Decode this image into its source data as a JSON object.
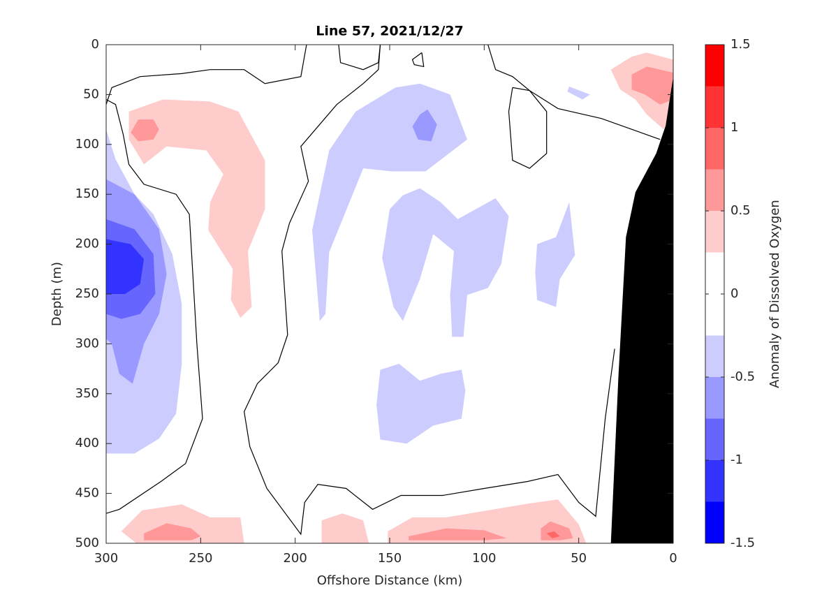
{
  "chart_data": {
    "type": "contour",
    "title": "Line 57, 2021/12/27",
    "xlabel": "Offshore Distance (km)",
    "ylabel": "Depth (m)",
    "xlim": [
      300,
      0
    ],
    "ylim": [
      500,
      0
    ],
    "xticks": [
      300,
      250,
      200,
      150,
      100,
      50,
      0
    ],
    "yticks": [
      0,
      50,
      100,
      150,
      200,
      250,
      300,
      350,
      400,
      450,
      500
    ],
    "colorbar": {
      "label": "Anomaly of Dissolved Oxygen",
      "clim": [
        -1.5,
        1.5
      ],
      "ticks": [
        -1.5,
        -1,
        -0.5,
        0,
        0.5,
        1,
        1.5
      ],
      "levels": [
        -1.5,
        -1.25,
        -1,
        -0.75,
        -0.5,
        -0.25,
        0,
        0.25,
        0.5,
        0.75,
        1,
        1.25,
        1.5
      ],
      "colors": [
        "#0000ff",
        "#3333ff",
        "#6666ff",
        "#9999ff",
        "#ccccff",
        "#ffffff",
        "#ffffff",
        "#ffcccc",
        "#ff9999",
        "#ff6666",
        "#ff3333",
        "#ff0000"
      ]
    },
    "regions": [
      {
        "level": -0.5,
        "x": [
          300,
          295,
          285,
          275,
          265,
          260,
          260,
          263,
          272,
          285,
          300
        ],
        "y": [
          85,
          115,
          150,
          170,
          210,
          260,
          320,
          370,
          395,
          410,
          410
        ]
      },
      {
        "level": -0.75,
        "x": [
          300,
          285,
          272,
          268,
          272,
          280,
          286,
          293,
          297,
          300
        ],
        "y": [
          135,
          150,
          185,
          230,
          270,
          300,
          340,
          330,
          300,
          295
        ]
      },
      {
        "level": -1,
        "x": [
          300,
          285,
          275,
          274,
          282,
          292,
          300
        ],
        "y": [
          175,
          185,
          210,
          250,
          270,
          275,
          270
        ]
      },
      {
        "level": -1.25,
        "x": [
          300,
          287,
          280,
          282,
          290,
          300
        ],
        "y": [
          195,
          200,
          215,
          240,
          250,
          250
        ]
      },
      {
        "level": 0.25,
        "x": [
          288,
          270,
          245,
          230,
          222,
          216,
          216,
          225,
          223,
          229,
          234,
          233,
          240,
          246,
          245,
          238,
          247,
          268,
          280,
          288
        ],
        "y": [
          67,
          55,
          57,
          67,
          95,
          116,
          165,
          207,
          263,
          274,
          256,
          225,
          204,
          186,
          158,
          130,
          106,
          102,
          120,
          95
        ]
      },
      {
        "level": 0.5,
        "x": [
          283,
          275,
          272,
          275,
          283,
          287
        ],
        "y": [
          75,
          75,
          85,
          95,
          97,
          88
        ]
      },
      {
        "level": 0.25,
        "x": [
          33,
          22,
          14,
          0,
          0,
          5,
          14,
          20,
          28
        ],
        "y": [
          25,
          12,
          8,
          15,
          60,
          85,
          70,
          55,
          45
        ]
      },
      {
        "level": 0.5,
        "x": [
          22,
          14,
          0,
          0,
          7,
          15,
          22
        ],
        "y": [
          30,
          22,
          28,
          55,
          60,
          50,
          45
        ]
      },
      {
        "level": -0.5,
        "x": [
          182,
          191,
          187,
          184,
          182,
          164,
          149,
          131,
          109,
          118,
          134,
          147,
          168
        ],
        "y": [
          106,
          186,
          277,
          270,
          208,
          124,
          127,
          127,
          95,
          50,
          39,
          43,
          67
        ]
      },
      {
        "level": -0.75,
        "x": [
          134,
          130,
          125,
          128,
          135,
          138
        ],
        "y": [
          70,
          65,
          80,
          97,
          95,
          82
        ]
      },
      {
        "level": -0.5,
        "x": [
          134,
          123,
          114,
          94,
          87,
          91,
          98,
          109,
          111,
          117,
          118,
          116,
          127,
          134,
          143,
          148,
          154,
          150,
          143
        ],
        "y": [
          144,
          158,
          175,
          154,
          172,
          220,
          244,
          251,
          293,
          293,
          251,
          207,
          190,
          235,
          277,
          263,
          214,
          165,
          151
        ]
      },
      {
        "level": -0.5,
        "x": [
          72,
          62,
          55,
          52,
          60,
          62,
          72,
          73
        ],
        "y": [
          200,
          193,
          158,
          211,
          235,
          263,
          256,
          228
        ]
      },
      {
        "level": -0.5,
        "x": [
          55,
          44,
          48,
          56
        ],
        "y": [
          42,
          50,
          55,
          47
        ]
      },
      {
        "level": -0.5,
        "x": [
          155,
          145,
          134,
          123,
          112,
          110,
          112,
          127,
          141,
          155,
          157
        ],
        "y": [
          326,
          320,
          337,
          330,
          326,
          347,
          375,
          382,
          400,
          396,
          361
        ]
      },
      {
        "level": 0.25,
        "x": [
          292,
          281,
          260,
          245,
          229,
          227,
          284
        ],
        "y": [
          488,
          467,
          461,
          474,
          474,
          500,
          500
        ]
      },
      {
        "level": 0.25,
        "x": [
          186,
          175,
          164,
          161,
          186
        ],
        "y": [
          477,
          470,
          477,
          500,
          500
        ]
      },
      {
        "level": 0.25,
        "x": [
          151,
          138,
          120,
          98,
          76,
          61,
          50,
          46,
          151
        ],
        "y": [
          488,
          474,
          474,
          467,
          460,
          456,
          481,
          500,
          500
        ]
      },
      {
        "level": 0.5,
        "x": [
          280,
          268,
          255,
          250,
          255,
          280
        ],
        "y": [
          490,
          480,
          485,
          493,
          497,
          497
        ]
      },
      {
        "level": 0.5,
        "x": [
          140,
          120,
          100,
          88,
          100,
          140
        ],
        "y": [
          493,
          485,
          487,
          495,
          497,
          497
        ]
      },
      {
        "level": 0.5,
        "x": [
          70,
          65,
          55,
          53,
          60,
          70
        ],
        "y": [
          485,
          478,
          485,
          495,
          497,
          497
        ]
      },
      {
        "level": 0.75,
        "x": [
          67,
          63,
          60,
          64
        ],
        "y": [
          490,
          488,
          493,
          495
        ]
      }
    ],
    "land": {
      "color": "#000000",
      "x": [
        33,
        29,
        25,
        20,
        9,
        4,
        0,
        0
      ],
      "y": [
        500,
        333,
        193,
        148,
        109,
        81,
        32,
        500
      ]
    },
    "contour_color": "#000000",
    "contour_lines": [
      {
        "x": [
          300,
          297,
          282,
          260,
          245,
          227,
          216,
          197,
          194
        ],
        "y": [
          60,
          43,
          32,
          29,
          25,
          25,
          39,
          32,
          0
        ]
      },
      {
        "x": [
          177,
          176,
          164,
          156,
          155
        ],
        "y": [
          0,
          18,
          25,
          18,
          0
        ]
      },
      {
        "x": [
          155,
          156,
          164,
          178,
          197,
          193,
          203,
          207,
          204,
          209,
          220,
          227,
          224,
          215,
          197,
          195,
          188,
          173,
          159,
          144,
          122,
          100,
          77,
          61,
          50,
          41,
          36,
          31
        ],
        "y": [
          0,
          25,
          39,
          60,
          102,
          137,
          179,
          207,
          291,
          319,
          340,
          368,
          403,
          445,
          491,
          459,
          441,
          445,
          466,
          452,
          452,
          445,
          438,
          431,
          459,
          473,
          375,
          305
        ]
      },
      {
        "x": [
          98,
          94,
          85,
          76,
          61,
          38,
          7
        ],
        "y": [
          0,
          25,
          32,
          46,
          64,
          74,
          95
        ]
      },
      {
        "x": [
          300,
          293,
          271,
          258,
          249,
          252,
          256,
          263,
          280,
          288,
          291,
          295,
          300
        ],
        "y": [
          470,
          466,
          438,
          420,
          375,
          300,
          170,
          150,
          140,
          120,
          90,
          60,
          55
        ]
      },
      {
        "x": [
          85,
          87,
          85,
          76,
          67,
          67,
          76,
          85
        ],
        "y": [
          43,
          67,
          116,
          124,
          109,
          67,
          46,
          43
        ]
      },
      {
        "x": [
          133,
          138,
          137,
          132,
          133
        ],
        "y": [
          8,
          15,
          20,
          22,
          8
        ]
      }
    ]
  }
}
